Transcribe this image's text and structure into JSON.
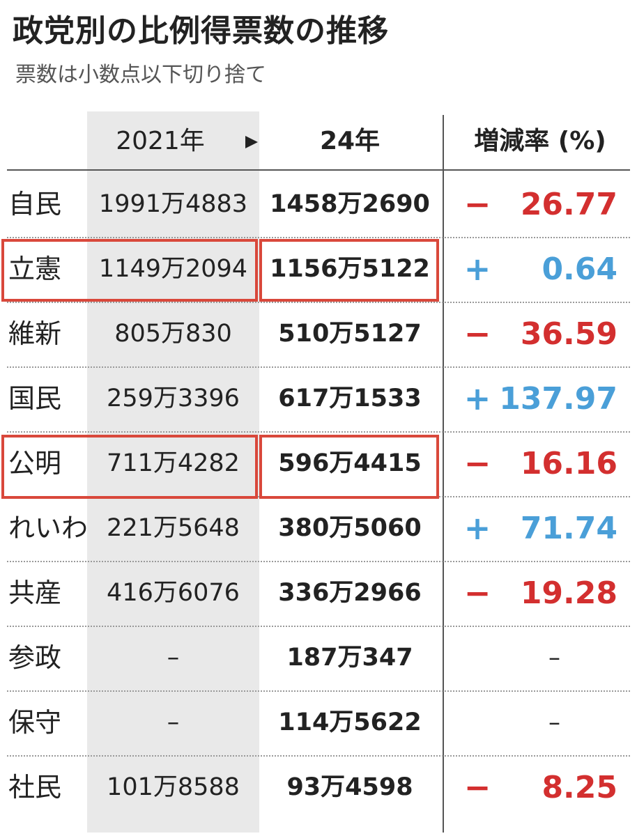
{
  "header": {
    "title": "政党別の比例得票数の推移",
    "subtitle": "票数は小数点以下切り捨て"
  },
  "table": {
    "columns": [
      "2021年",
      "24年",
      "増減率 (%)"
    ],
    "rows": [
      {
        "party": "自民",
        "y2021": "1991万4883",
        "y2024": "1458万2690",
        "sign": "−",
        "rate": "26.77",
        "color": "#d32f2f"
      },
      {
        "party": "立憲",
        "y2021": "1149万2094",
        "y2024": "1156万5122",
        "sign": "+",
        "rate": "0.64",
        "color": "#4a9fd8"
      },
      {
        "party": "維新",
        "y2021": "805万830",
        "y2024": "510万5127",
        "sign": "−",
        "rate": "36.59",
        "color": "#d32f2f"
      },
      {
        "party": "国民",
        "y2021": "259万3396",
        "y2024": "617万1533",
        "sign": "+",
        "rate": "137.97",
        "color": "#4a9fd8"
      },
      {
        "party": "公明",
        "y2021": "711万4282",
        "y2024": "596万4415",
        "sign": "−",
        "rate": "16.16",
        "color": "#d32f2f"
      },
      {
        "party": "れいわ",
        "y2021": "221万5648",
        "y2024": "380万5060",
        "sign": "+",
        "rate": "71.74",
        "color": "#4a9fd8"
      },
      {
        "party": "共産",
        "y2021": "416万6076",
        "y2024": "336万2966",
        "sign": "−",
        "rate": "19.28",
        "color": "#d32f2f"
      },
      {
        "party": "参政",
        "y2021": "–",
        "y2024": "187万347",
        "rate": "–"
      },
      {
        "party": "保守",
        "y2021": "–",
        "y2024": "114万5622",
        "rate": "–"
      },
      {
        "party": "社民",
        "y2021": "101万8588",
        "y2024": "93万4598",
        "sign": "−",
        "rate": "8.25",
        "color": "#d32f2f"
      }
    ]
  }
}
